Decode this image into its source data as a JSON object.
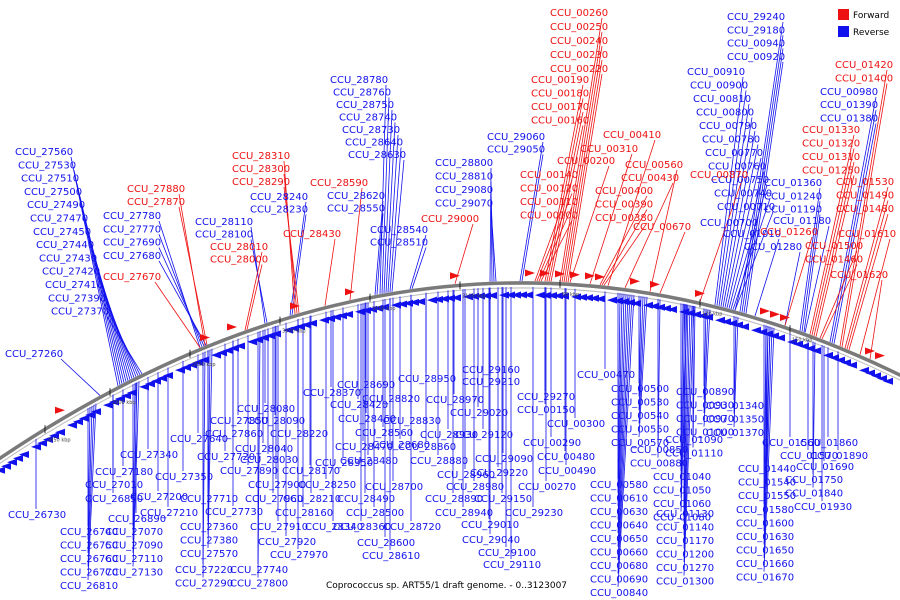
{
  "caption": "Coprococcus sp. ART55/1 draft genome. - 0..3123007",
  "legend": [
    {
      "label": "Forward",
      "color": "#ee1111"
    },
    {
      "label": "Reverse",
      "color": "#1111ee"
    }
  ],
  "colors": {
    "forward": "#ee1111",
    "reverse": "#1111ee",
    "backbone": "#7a7a7a",
    "tick": "#000000"
  },
  "scale_ticks": [
    "2850 kbp",
    "2900 kbp",
    "2950 kbp",
    "3000 kbp",
    "3050 kbp",
    "3100 kbp",
    "50 kbp",
    "100 kbp",
    "150 kbp"
  ],
  "labels_top": [
    "CCU_27560",
    "CCU_27530",
    "CCU_27510",
    "CCU_27500",
    "CCU_27490",
    "CCU_27470",
    "CCU_27450",
    "CCU_27440",
    "CCU_27430",
    "CCU_27420",
    "CCU_27410",
    "CCU_27390",
    "CCU_27370",
    "CCU_27260",
    "CCU_27780",
    "CCU_27770",
    "CCU_27690",
    "CCU_27680",
    "CCU_28110",
    "CCU_28100",
    "CCU_28240",
    "CCU_28230",
    "CCU_28780",
    "CCU_28760",
    "CCU_28750",
    "CCU_28740",
    "CCU_28730",
    "CCU_28640",
    "CCU_28630",
    "CCU_28620",
    "CCU_28550",
    "CCU_28540",
    "CCU_28510",
    "CCU_28800",
    "CCU_28810",
    "CCU_29080",
    "CCU_29070",
    "CCU_29060",
    "CCU_29050",
    "CCU_29240",
    "CCU_29180",
    "CCU_00940",
    "CCU_00920",
    "CCU_00910",
    "CCU_00900",
    "CCU_00810",
    "CCU_00800",
    "CCU_00790",
    "CCU_00780",
    "CCU_00770",
    "CCU_00760",
    "CCU_00750",
    "CCU_00740",
    "CCU_00710",
    "CCU_00700",
    "CCU_01010",
    "CCU_00980",
    "CCU_01390",
    "CCU_01380",
    "CCU_01360",
    "CCU_01240",
    "CCU_01190",
    "CCU_01180",
    "CCU_01280",
    "CCU_01210"
  ],
  "labels_top_fwd": [
    "CCU_27880",
    "CCU_27870",
    "CCU_27670",
    "CCU_28310",
    "CCU_28300",
    "CCU_28290",
    "CCU_28010",
    "CCU_28000",
    "CCU_28430",
    "CCU_28590",
    "CCU_29000",
    "CCU_00260",
    "CCU_00250",
    "CCU_00240",
    "CCU_00230",
    "CCU_00220",
    "CCU_00190",
    "CCU_00180",
    "CCU_00170",
    "CCU_00160",
    "CCU_00140",
    "CCU_00120",
    "CCU_00110",
    "CCU_00100",
    "CCU_00200",
    "CCU_00310",
    "CCU_00410",
    "CCU_00400",
    "CCU_00390",
    "CCU_00380",
    "CCU_00430",
    "CCU_00560",
    "CCU_00870",
    "CCU_00670",
    "CCU_01420",
    "CCU_01400",
    "CCU_01330",
    "CCU_01320",
    "CCU_01310",
    "CCU_01250",
    "CCU_01530",
    "CCU_01490",
    "CCU_01480",
    "CCU_01260",
    "CCU_01500",
    "CCU_01460",
    "CCU_01610",
    "CCU_01620"
  ],
  "labels_bottom": [
    "CCU_26730",
    "CCU_26740",
    "CCU_26750",
    "CCU_26760",
    "CCU_26770",
    "CCU_26810",
    "CCU_26850",
    "CCU_26890",
    "CCU_27010",
    "CCU_27070",
    "CCU_27090",
    "CCU_27110",
    "CCU_27130",
    "CCU_27180",
    "CCU_27200",
    "CCU_27210",
    "CCU_27220",
    "CCU_27290",
    "CCU_27340",
    "CCU_27350",
    "CCU_27360",
    "CCU_27380",
    "CCU_27570",
    "CCU_27640",
    "CCU_27710",
    "CCU_27720",
    "CCU_27730",
    "CCU_27740",
    "CCU_27800",
    "CCU_27850",
    "CCU_27860",
    "CCU_27890",
    "CCU_27900",
    "CCU_27910",
    "CCU_27920",
    "CCU_27960",
    "CCU_27970",
    "CCU_28030",
    "CCU_28040",
    "CCU_28080",
    "CCU_28090",
    "CCU_28160",
    "CCU_28170",
    "CCU_28210",
    "CCU_28220",
    "CCU_28250",
    "CCU_28340",
    "CCU_28350",
    "CCU_28360",
    "CCU_28370",
    "CCU_28420",
    "CCU_28460",
    "CCU_28470",
    "CCU_28480",
    "CCU_28490",
    "CCU_28500",
    "CCU_28560",
    "CCU_28600",
    "CCU_28610",
    "CCU_28680",
    "CCU_28690",
    "CCU_28700",
    "CCU_28720",
    "CCU_28820",
    "CCU_28830",
    "CCU_28860",
    "CCU_28880",
    "CCU_28890",
    "CCU_28930",
    "CCU_28940",
    "CCU_28950",
    "CCU_28960",
    "CCU_28970",
    "CCU_28980",
    "CCU_29010",
    "CCU_29020",
    "CCU_29040",
    "CCU_29090",
    "CCU_29100",
    "CCU_29110",
    "CCU_29120",
    "CCU_29150",
    "CCU_29160",
    "CCU_29210",
    "CCU_29220",
    "CCU_29230",
    "CCU_29270",
    "CCU_00150",
    "CCU_00270",
    "CCU_00290",
    "CCU_00300",
    "CCU_00470",
    "CCU_00480",
    "CCU_00490",
    "CCU_00500",
    "CCU_00530",
    "CCU_00540",
    "CCU_00550",
    "CCU_00570",
    "CCU_00580",
    "CCU_00610",
    "CCU_00630",
    "CCU_00640",
    "CCU_00650",
    "CCU_00660",
    "CCU_00680",
    "CCU_00690",
    "CCU_00840",
    "CCU_00850",
    "CCU_00880",
    "CCU_00890",
    "CCU_00930",
    "CCU_00970",
    "CCU_01000",
    "CCU_01040",
    "CCU_01050",
    "CCU_01060",
    "CCU_01080",
    "CCU_01090",
    "CCU_01110",
    "CCU_01130",
    "CCU_01140",
    "CCU_01170",
    "CCU_01200",
    "CCU_01270",
    "CCU_01300",
    "CCU_01340",
    "CCU_01350",
    "CCU_01370",
    "CCU_01440",
    "CCU_01540",
    "CCU_01550",
    "CCU_01560",
    "CCU_01570",
    "CCU_01580",
    "CCU_01600",
    "CCU_01630",
    "CCU_01650",
    "CCU_01660",
    "CCU_01670",
    "CCU_01690",
    "CCU_01750",
    "CCU_01840",
    "CCU_01860",
    "CCU_01890",
    "CCU_01930"
  ]
}
